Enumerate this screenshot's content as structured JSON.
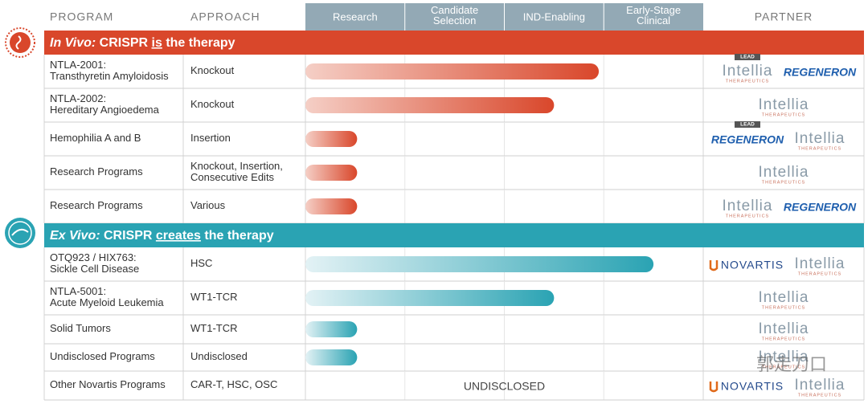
{
  "header": {
    "program": "PROGRAM",
    "approach": "APPROACH",
    "stages": [
      "Research",
      "Candidate Selection",
      "IND-Enabling",
      "Early-Stage Clinical"
    ],
    "partner": "PARTNER"
  },
  "sections": [
    {
      "heading": {
        "parts": [
          "In Vivo:",
          " CRISPR ",
          "is",
          " the therapy"
        ]
      },
      "theme": "orange",
      "rows": [
        {
          "program": [
            "NTLA-2001:",
            "Transthyretin Amyloidosis"
          ],
          "approach": [
            "Knockout"
          ],
          "progress": 2.95,
          "partners": [
            {
              "text": "Intellia",
              "sub": "THERAPEUTICS",
              "tag": "LEAD"
            },
            {
              "text": "REGENERON"
            }
          ]
        },
        {
          "program": [
            "NTLA-2002:",
            "Hereditary Angioedema"
          ],
          "approach": [
            "Knockout"
          ],
          "progress": 2.5,
          "partners": [
            {
              "text": "Intellia",
              "sub": "THERAPEUTICS"
            }
          ]
        },
        {
          "program": [
            "Hemophilia A and B"
          ],
          "approach": [
            "Insertion"
          ],
          "progress": 0.52,
          "partners": [
            {
              "text": "REGENERON",
              "tag": "LEAD"
            },
            {
              "text": "Intellia",
              "sub": "THERAPEUTICS"
            }
          ]
        },
        {
          "program": [
            "Research Programs"
          ],
          "approach": [
            "Knockout, Insertion,",
            "Consecutive Edits"
          ],
          "progress": 0.52,
          "partners": [
            {
              "text": "Intellia",
              "sub": "THERAPEUTICS"
            }
          ]
        },
        {
          "program": [
            "Research Programs"
          ],
          "approach": [
            "Various"
          ],
          "progress": 0.52,
          "partners": [
            {
              "text": "Intellia",
              "sub": "THERAPEUTICS"
            },
            {
              "text": "REGENERON"
            }
          ]
        }
      ]
    },
    {
      "heading": {
        "parts": [
          "Ex Vivo:",
          " CRISPR ",
          "creates",
          " the therapy"
        ]
      },
      "theme": "teal",
      "rows": [
        {
          "program": [
            "OTQ923 / HIX763:",
            "Sickle Cell Disease"
          ],
          "approach": [
            "HSC"
          ],
          "progress": 3.5,
          "partners": [
            {
              "text": "NOVARTIS"
            },
            {
              "text": "Intellia",
              "sub": "THERAPEUTICS"
            }
          ]
        },
        {
          "program": [
            "NTLA-5001:",
            "Acute Myeloid Leukemia"
          ],
          "approach": [
            "WT1-TCR"
          ],
          "progress": 2.5,
          "partners": [
            {
              "text": "Intellia",
              "sub": "THERAPEUTICS"
            }
          ]
        },
        {
          "program": [
            "Solid Tumors"
          ],
          "approach": [
            "WT1-TCR"
          ],
          "progress": 0.52,
          "partners": [
            {
              "text": "Intellia",
              "sub": "THERAPEUTICS"
            }
          ]
        },
        {
          "program": [
            "Undisclosed Programs"
          ],
          "approach": [
            "Undisclosed"
          ],
          "progress": 0.52,
          "partners": [
            {
              "text": "Intellia",
              "sub": "THERAPEUTICS"
            }
          ]
        },
        {
          "program": [
            "Other Novartis Programs"
          ],
          "approach": [
            "CAR-T, HSC, OSC"
          ],
          "status": "UNDISCLOSED",
          "partners": [
            {
              "text": "NOVARTIS"
            },
            {
              "text": "Intellia",
              "sub": "THERAPEUTICS"
            }
          ]
        }
      ]
    }
  ],
  "watermark": "郭走刀口"
}
